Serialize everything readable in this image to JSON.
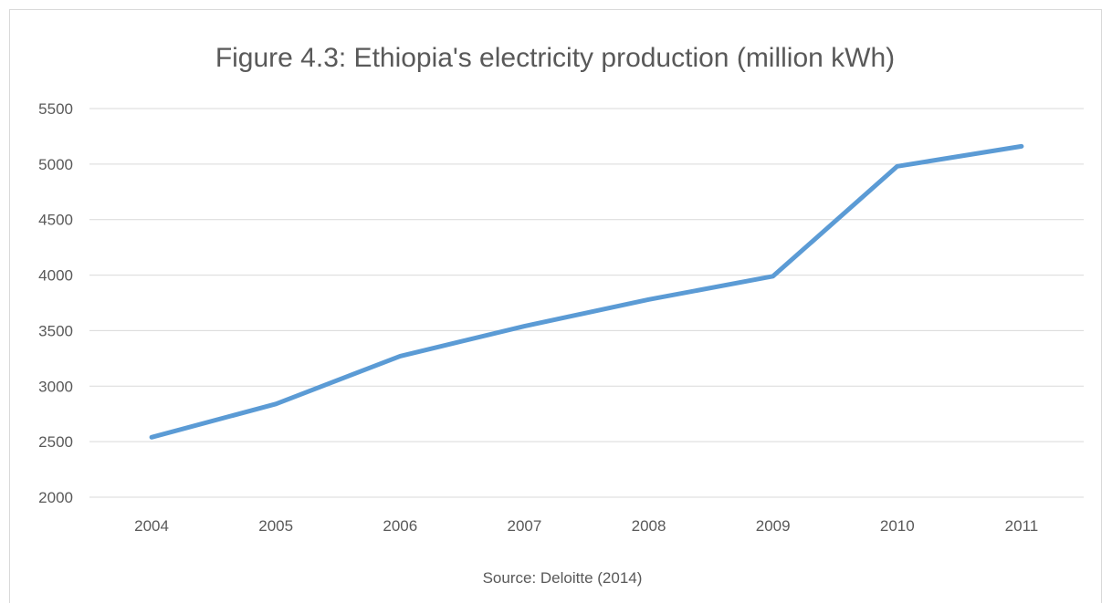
{
  "chart_data": {
    "type": "line",
    "title": "Figure 4.3: Ethiopia's electricity production (million kWh)",
    "xlabel": "Source: Deloitte (2014)",
    "ylabel": "",
    "categories": [
      "2004",
      "2005",
      "2006",
      "2007",
      "2008",
      "2009",
      "2010",
      "2011"
    ],
    "series": [
      {
        "values": [
          2540,
          2840,
          3270,
          3540,
          3780,
          3990,
          4980,
          5160
        ]
      }
    ],
    "ylim": [
      2000,
      5500
    ],
    "yticks": [
      2000,
      2500,
      3000,
      3500,
      4000,
      4500,
      5000,
      5500
    ],
    "grid": "horizontal",
    "legend": "none",
    "colors": {
      "line": "#5b9bd5",
      "grid": "#d9d9d9",
      "text": "#595959"
    }
  }
}
